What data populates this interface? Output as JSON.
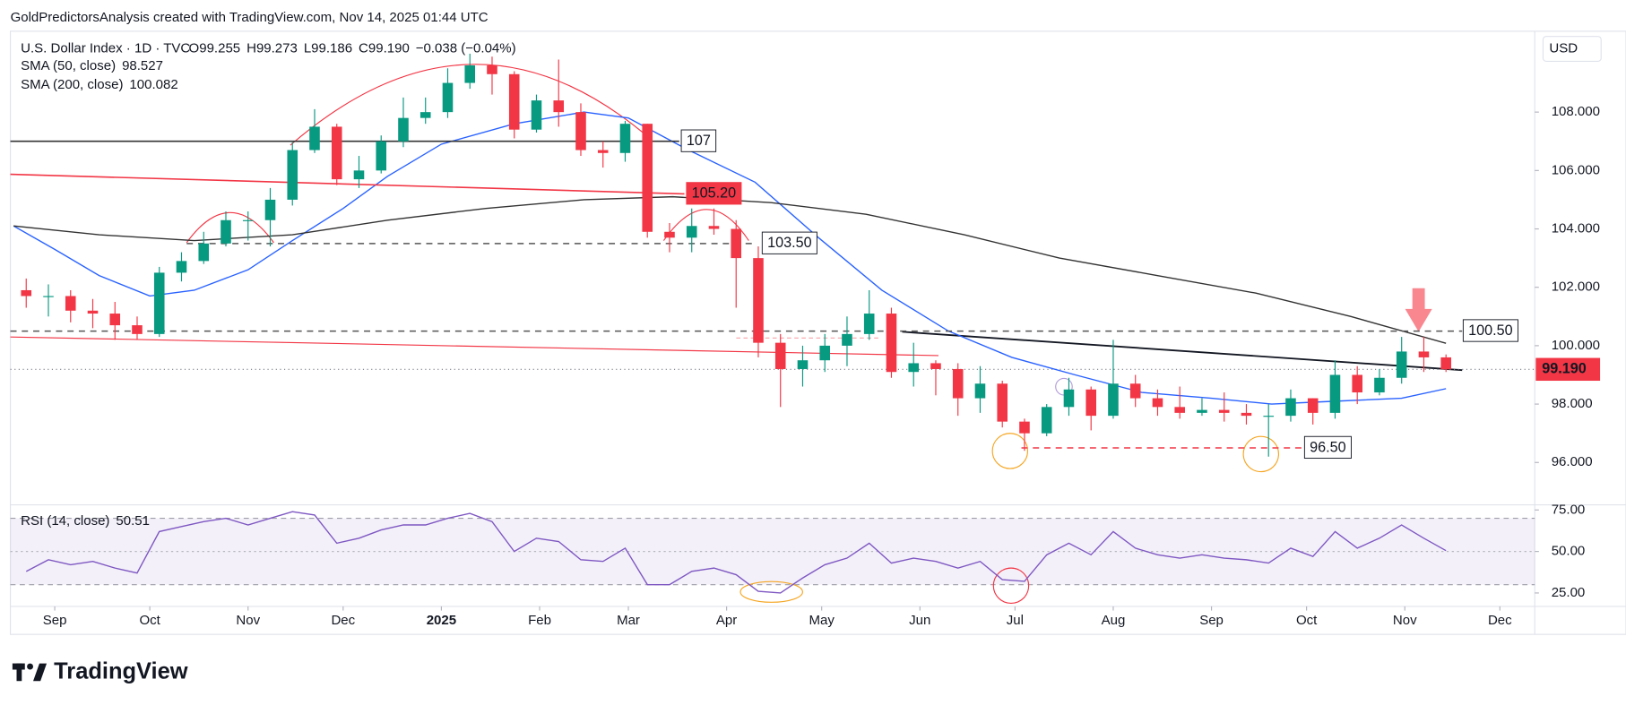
{
  "header": {
    "credit": "GoldPredictorsAnalysis created with TradingView.com, Nov 14, 2025 01:44 UTC"
  },
  "chart_data": {
    "type": "candlestick",
    "symbol": "U.S. Dollar Index · 1D · TVC",
    "ohlc_legend": [
      "O99.255",
      "H99.273",
      "L99.186",
      "C99.190",
      "−0.038 (−0.04%)"
    ],
    "currency": "USD",
    "up_color": "#089981",
    "down_color": "#f23645",
    "x": [
      "2024-08-23",
      "2024-08-30",
      "2024-09-06",
      "2024-09-13",
      "2024-09-20",
      "2024-09-27",
      "2024-10-04",
      "2024-10-11",
      "2024-10-18",
      "2024-10-25",
      "2024-11-01",
      "2024-11-08",
      "2024-11-15",
      "2024-11-22",
      "2024-11-29",
      "2024-12-06",
      "2024-12-13",
      "2024-12-20",
      "2024-12-27",
      "2025-01-03",
      "2025-01-10",
      "2025-01-17",
      "2025-01-24",
      "2025-01-31",
      "2025-02-07",
      "2025-02-14",
      "2025-02-21",
      "2025-02-28",
      "2025-03-07",
      "2025-03-14",
      "2025-03-21",
      "2025-03-28",
      "2025-04-04",
      "2025-04-11",
      "2025-04-18",
      "2025-04-25",
      "2025-05-02",
      "2025-05-09",
      "2025-05-16",
      "2025-05-23",
      "2025-05-30",
      "2025-06-06",
      "2025-06-13",
      "2025-06-20",
      "2025-06-27",
      "2025-07-04",
      "2025-07-11",
      "2025-07-18",
      "2025-07-25",
      "2025-08-01",
      "2025-08-08",
      "2025-08-15",
      "2025-08-22",
      "2025-08-29",
      "2025-09-05",
      "2025-09-12",
      "2025-09-19",
      "2025-09-26",
      "2025-10-03",
      "2025-10-10",
      "2025-10-17",
      "2025-10-24",
      "2025-10-31",
      "2025-11-07",
      "2025-11-14"
    ],
    "open": [
      101.9,
      101.7,
      101.7,
      101.2,
      101.1,
      100.7,
      100.4,
      102.5,
      102.9,
      103.5,
      104.3,
      104.3,
      105.0,
      106.7,
      107.5,
      105.7,
      106.0,
      107.0,
      107.8,
      108.0,
      109.0,
      109.6,
      109.3,
      107.4,
      108.4,
      108.0,
      106.7,
      106.6,
      107.6,
      103.9,
      103.7,
      104.1,
      104.0,
      103.0,
      100.1,
      99.2,
      99.5,
      100.0,
      100.4,
      101.1,
      99.1,
      99.4,
      99.2,
      98.2,
      98.7,
      97.4,
      97.0,
      97.9,
      98.5,
      97.6,
      98.7,
      98.2,
      97.9,
      97.7,
      97.8,
      97.7,
      97.6,
      97.6,
      98.2,
      97.7,
      99.0,
      98.4,
      98.9,
      99.8,
      99.6
    ],
    "high": [
      102.3,
      102.1,
      101.9,
      101.6,
      101.5,
      101.0,
      102.7,
      103.2,
      103.9,
      104.6,
      104.6,
      105.4,
      107.0,
      108.1,
      107.6,
      106.5,
      107.2,
      108.5,
      108.5,
      109.5,
      110.0,
      109.9,
      109.4,
      108.6,
      109.8,
      108.3,
      107.0,
      107.7,
      107.6,
      104.2,
      104.7,
      104.7,
      104.3,
      103.4,
      100.4,
      100.0,
      100.4,
      101.0,
      101.9,
      101.3,
      100.1,
      99.5,
      99.4,
      99.3,
      98.8,
      97.5,
      98.0,
      98.9,
      98.6,
      100.2,
      99.0,
      98.5,
      98.6,
      98.2,
      98.4,
      98.0,
      98.0,
      98.5,
      98.2,
      99.5,
      99.3,
      99.2,
      100.3,
      100.3,
      99.7
    ],
    "low": [
      101.3,
      101.0,
      100.8,
      100.6,
      100.2,
      100.2,
      100.3,
      102.2,
      102.8,
      103.4,
      103.6,
      103.4,
      104.8,
      106.6,
      105.5,
      105.4,
      105.9,
      106.8,
      107.6,
      107.8,
      108.8,
      108.6,
      107.1,
      107.3,
      107.5,
      106.5,
      106.1,
      106.3,
      103.7,
      103.2,
      103.2,
      103.8,
      101.3,
      99.6,
      97.9,
      98.6,
      99.1,
      99.3,
      100.2,
      98.9,
      98.6,
      98.3,
      97.6,
      97.7,
      97.2,
      96.4,
      96.9,
      97.6,
      97.1,
      97.5,
      97.9,
      97.6,
      97.5,
      97.6,
      97.4,
      97.3,
      96.2,
      97.4,
      97.3,
      97.5,
      98.0,
      98.3,
      98.7,
      99.1,
      99.1
    ],
    "close": [
      101.7,
      101.7,
      101.2,
      101.1,
      100.7,
      100.4,
      102.5,
      102.9,
      103.5,
      104.3,
      104.3,
      105.0,
      106.7,
      107.5,
      105.7,
      106.0,
      107.0,
      107.8,
      108.0,
      109.0,
      109.6,
      109.3,
      107.4,
      108.4,
      108.0,
      106.7,
      106.6,
      107.6,
      103.9,
      103.7,
      104.1,
      104.0,
      103.0,
      100.1,
      99.2,
      99.5,
      100.0,
      100.4,
      101.1,
      99.1,
      99.4,
      99.2,
      98.2,
      98.7,
      97.4,
      97.0,
      97.9,
      98.5,
      97.6,
      98.7,
      98.2,
      97.9,
      97.7,
      97.8,
      97.7,
      97.6,
      97.6,
      98.2,
      97.7,
      99.0,
      98.4,
      98.9,
      99.8,
      99.6,
      99.19
    ],
    "xlim": [
      "2024-08-18",
      "2025-12-12"
    ],
    "xticks": [
      {
        "value": "2024-09-01",
        "label": "Sep"
      },
      {
        "value": "2024-10-01",
        "label": "Oct"
      },
      {
        "value": "2024-11-01",
        "label": "Nov"
      },
      {
        "value": "2024-12-01",
        "label": "Dec"
      },
      {
        "value": "2025-01-01",
        "label": "2025"
      },
      {
        "value": "2025-02-01",
        "label": "Feb"
      },
      {
        "value": "2025-03-01",
        "label": "Mar"
      },
      {
        "value": "2025-04-01",
        "label": "Apr"
      },
      {
        "value": "2025-05-01",
        "label": "May"
      },
      {
        "value": "2025-06-01",
        "label": "Jun"
      },
      {
        "value": "2025-07-01",
        "label": "Jul"
      },
      {
        "value": "2025-08-01",
        "label": "Aug"
      },
      {
        "value": "2025-09-01",
        "label": "Sep"
      },
      {
        "value": "2025-10-01",
        "label": "Oct"
      },
      {
        "value": "2025-11-01",
        "label": "Nov"
      },
      {
        "value": "2025-12-01",
        "label": "Dec"
      }
    ],
    "ylim": [
      94.62,
      110.77
    ],
    "yticks": [
      {
        "value": 96,
        "label": "96.000"
      },
      {
        "value": 98,
        "label": "98.000"
      },
      {
        "value": 100,
        "label": "100.000"
      },
      {
        "value": 102,
        "label": "102.000"
      },
      {
        "value": 104,
        "label": "104.000"
      },
      {
        "value": 106,
        "label": "106.000"
      },
      {
        "value": 108,
        "label": "108.000"
      }
    ],
    "indicators": [
      {
        "name": "SMA (50, close)",
        "color": "#2962ff",
        "x": [
          "2024-08-19",
          "2024-09-01",
          "2024-09-15",
          "2024-10-01",
          "2024-10-15",
          "2024-11-01",
          "2024-11-15",
          "2024-12-01",
          "2024-12-15",
          "2025-01-01",
          "2025-01-24",
          "2025-02-15",
          "2025-03-01",
          "2025-03-20",
          "2025-04-10",
          "2025-04-30",
          "2025-05-20",
          "2025-06-10",
          "2025-06-30",
          "2025-07-20",
          "2025-08-10",
          "2025-09-01",
          "2025-09-20",
          "2025-10-10",
          "2025-10-31",
          "2025-11-14"
        ],
        "values": [
          104.1,
          103.3,
          102.4,
          101.7,
          101.9,
          102.6,
          103.6,
          104.7,
          105.8,
          106.9,
          107.6,
          108.0,
          107.8,
          106.7,
          105.6,
          103.7,
          101.9,
          100.5,
          99.6,
          99.0,
          98.4,
          98.2,
          98.0,
          98.1,
          98.2,
          98.527
        ]
      },
      {
        "name": "SMA (200, close)",
        "color": "#333333",
        "x": [
          "2024-08-19",
          "2024-09-15",
          "2024-10-15",
          "2024-11-15",
          "2024-12-15",
          "2025-01-15",
          "2025-02-15",
          "2025-03-15",
          "2025-04-15",
          "2025-05-15",
          "2025-06-15",
          "2025-07-15",
          "2025-08-15",
          "2025-09-15",
          "2025-10-15",
          "2025-11-14"
        ],
        "values": [
          104.1,
          103.8,
          103.6,
          103.8,
          104.3,
          104.7,
          105.0,
          105.1,
          104.9,
          104.5,
          103.8,
          103.0,
          102.4,
          101.8,
          101.0,
          100.082
        ]
      }
    ],
    "levels": [
      {
        "value": 107,
        "label": "107",
        "color": "#333333",
        "dash": false
      },
      {
        "value": 105.2,
        "label": "105.20",
        "color": "#f23645",
        "dash": false,
        "label_fill": "#f23645"
      },
      {
        "value": 103.5,
        "label": "103.50",
        "color": "#555555",
        "dash": true
      },
      {
        "value": 100.5,
        "label": "100.50",
        "color": "#555555",
        "dash": true
      },
      {
        "value": 96.5,
        "label": "96.50",
        "color": "#f23645",
        "dash": true
      }
    ],
    "last_price": {
      "value": 99.19,
      "label": "99.190"
    },
    "rsi": {
      "type": "line",
      "name": "RSI (14, close)",
      "color": "#7e57c2",
      "values": [
        38,
        45,
        42,
        44,
        40,
        37,
        62,
        65,
        68,
        70,
        66,
        70,
        74,
        72,
        55,
        58,
        63,
        66,
        66,
        70,
        73,
        68,
        50,
        58,
        56,
        45,
        44,
        52,
        30,
        30,
        38,
        40,
        36,
        26,
        25,
        34,
        42,
        46,
        55,
        43,
        46,
        44,
        40,
        44,
        33,
        32,
        48,
        55,
        48,
        62,
        52,
        48,
        46,
        48,
        46,
        45,
        43,
        52,
        47,
        62,
        52,
        58,
        66,
        58,
        50.51
      ],
      "ylim": [
        16.9,
        78.1
      ],
      "yticks": [
        {
          "value": 25,
          "label": "25.00"
        },
        {
          "value": 50,
          "label": "50.00"
        },
        {
          "value": 75,
          "label": "75.00"
        }
      ]
    }
  },
  "footer": {
    "brand": "TradingView"
  }
}
